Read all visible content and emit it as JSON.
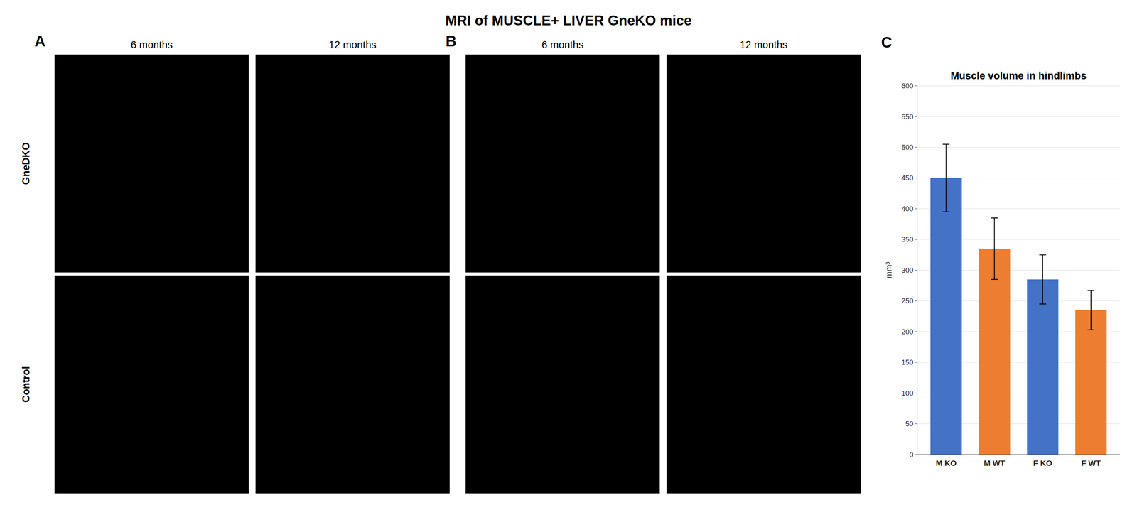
{
  "chart_data": {
    "type": "bar",
    "title": "Muscle volume in hindlimbs",
    "annotations": [
      "MRI  of MUSCLE+ LIVER GneKO mice",
      "A",
      "B",
      "6 months",
      "12 months",
      "6 months",
      "12 months",
      "GneDKO",
      "Control",
      "C"
    ],
    "categories": [
      "M KO",
      "M WT",
      "F KO",
      "F WT"
    ],
    "values": [
      450,
      335,
      285,
      235
    ],
    "errors": [
      55,
      50,
      40,
      32
    ],
    "colors": [
      "#4472C4",
      "#ED7D31",
      "#4472C4",
      "#ED7D31"
    ],
    "ylabel": "mm³",
    "ylim": [
      0,
      600
    ],
    "yticks": [
      0,
      50,
      100,
      150,
      200,
      250,
      300,
      350,
      400,
      450,
      500,
      550,
      600
    ],
    "grid": true
  }
}
